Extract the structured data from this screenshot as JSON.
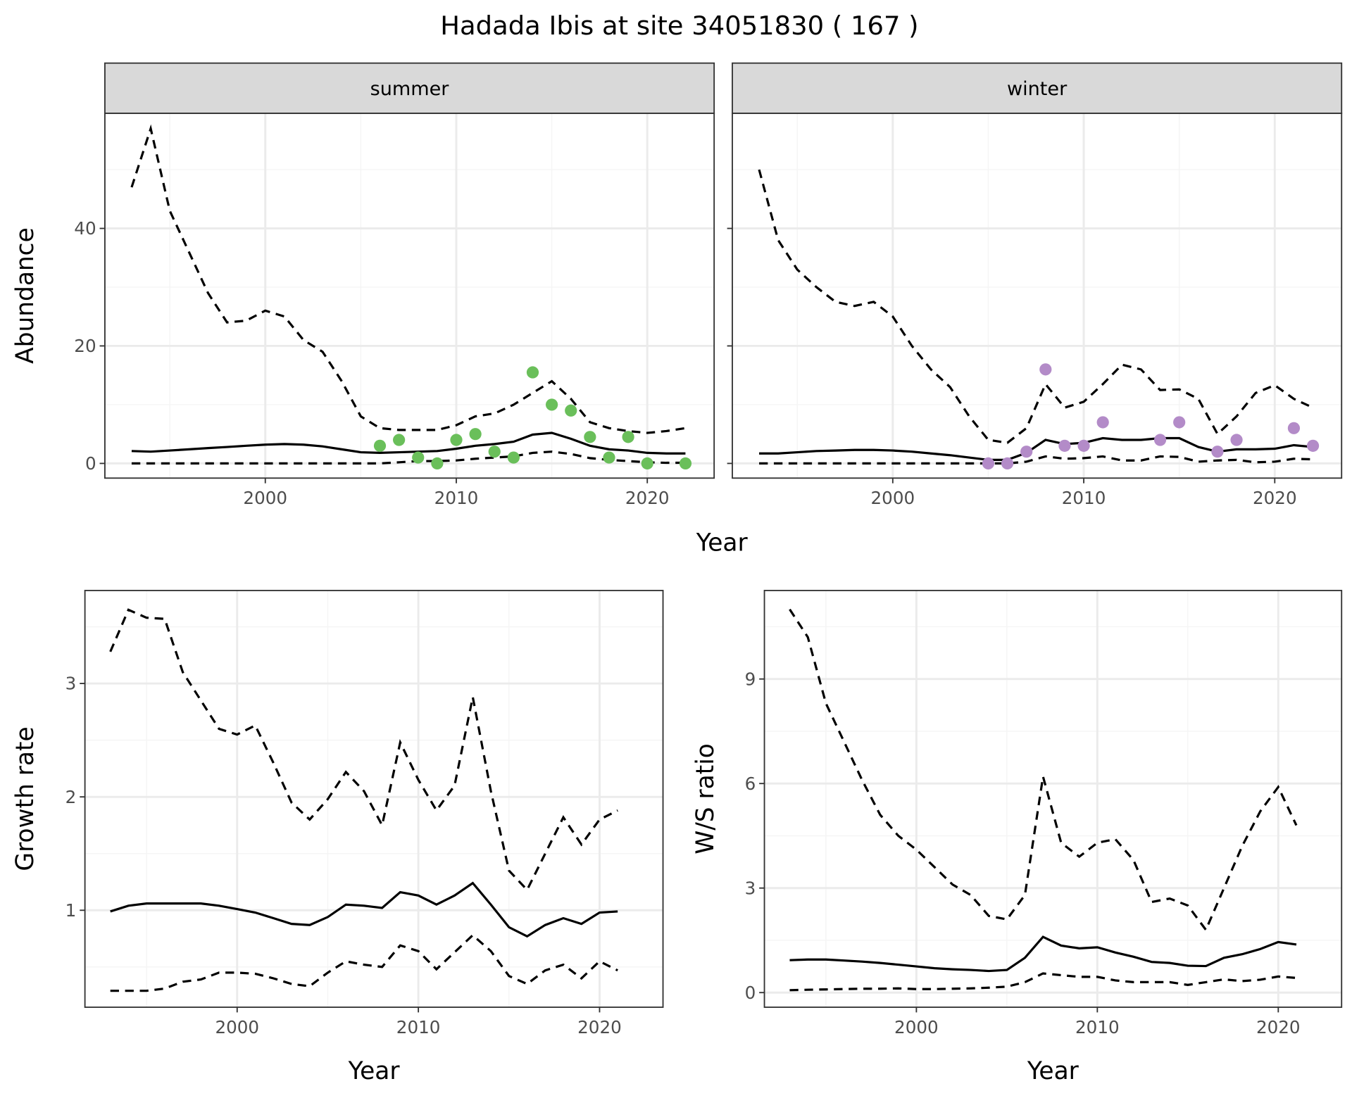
{
  "title": "Hadada Ibis at site 34051830 ( 167 )",
  "colors": {
    "summer_points": "#6abf5a",
    "winter_points": "#b38bc8",
    "lines": "#000000",
    "strip_fill": "#d9d9d9",
    "grid_major": "#ebebeb",
    "grid_minor": "#f5f5f5"
  },
  "chart_data": [
    {
      "type": "line",
      "facet": "summer",
      "xlabel": "Year",
      "ylabel": "Abundance",
      "xlim": [
        1991.6,
        2023.5
      ],
      "ylim": [
        -2.5,
        59.6
      ],
      "xticks": [
        2000,
        2010,
        2020
      ],
      "yticks": [
        0,
        20,
        40
      ],
      "grid": true,
      "x": [
        1993,
        1994,
        1995,
        1996,
        1997,
        1998,
        1999,
        2000,
        2001,
        2002,
        2003,
        2004,
        2005,
        2006,
        2007,
        2008,
        2009,
        2010,
        2011,
        2012,
        2013,
        2014,
        2015,
        2016,
        2017,
        2018,
        2019,
        2020,
        2021,
        2022
      ],
      "upper": [
        47,
        57,
        43,
        36,
        29,
        24,
        24.3,
        26,
        25,
        21,
        19,
        14,
        8,
        6,
        5.7,
        5.7,
        5.7,
        6.5,
        8,
        8.5,
        10,
        12,
        14,
        11,
        7,
        6,
        5.5,
        5.2,
        5.5,
        6
      ],
      "mean": [
        2.1,
        2.0,
        2.2,
        2.4,
        2.6,
        2.8,
        3.0,
        3.2,
        3.3,
        3.2,
        2.9,
        2.4,
        1.9,
        1.8,
        1.9,
        2.0,
        2.1,
        2.5,
        3.0,
        3.3,
        3.7,
        4.9,
        5.2,
        4.2,
        3.0,
        2.4,
        2.2,
        1.8,
        1.7,
        1.7
      ],
      "lower": [
        0,
        0,
        0,
        0,
        0,
        0,
        0,
        0,
        0,
        0,
        0,
        0,
        0,
        0,
        0.2,
        0.4,
        0.4,
        0.5,
        0.8,
        1.0,
        1.2,
        1.8,
        2.0,
        1.6,
        0.9,
        0.6,
        0.4,
        0.2,
        0.1,
        0.1
      ],
      "points": {
        "x": [
          2006,
          2007,
          2008,
          2009,
          2010,
          2011,
          2012,
          2013,
          2014,
          2015,
          2016,
          2017,
          2018,
          2019,
          2020,
          2022
        ],
        "y": [
          3,
          4,
          1,
          0,
          4,
          5,
          2,
          1,
          15.5,
          10,
          9,
          4.5,
          1,
          4.5,
          0,
          0
        ]
      }
    },
    {
      "type": "line",
      "facet": "winter",
      "xlabel": "Year",
      "ylabel": "Abundance",
      "xlim": [
        1991.6,
        2023.5
      ],
      "ylim": [
        -2.5,
        59.6
      ],
      "xticks": [
        2000,
        2010,
        2020
      ],
      "yticks": [
        0,
        20,
        40
      ],
      "grid": true,
      "x": [
        1993,
        1994,
        1995,
        1996,
        1997,
        1998,
        1999,
        2000,
        2001,
        2002,
        2003,
        2004,
        2005,
        2006,
        2007,
        2008,
        2009,
        2010,
        2011,
        2012,
        2013,
        2014,
        2015,
        2016,
        2017,
        2018,
        2019,
        2020,
        2021,
        2022
      ],
      "upper": [
        50,
        38,
        33,
        30,
        27.5,
        26.8,
        27.5,
        25,
        20,
        16,
        13,
        8,
        4,
        3.5,
        6,
        13.5,
        9.5,
        10.5,
        13.5,
        16.8,
        16,
        12.5,
        12.6,
        11,
        5,
        8,
        12,
        13.3,
        11,
        9.5
      ],
      "mean": [
        1.7,
        1.7,
        1.9,
        2.1,
        2.2,
        2.3,
        2.3,
        2.2,
        2.0,
        1.7,
        1.4,
        1.0,
        0.6,
        0.6,
        1.8,
        4.0,
        3.3,
        3.5,
        4.3,
        4.0,
        4.0,
        4.3,
        4.3,
        2.8,
        2.0,
        2.4,
        2.4,
        2.5,
        3.1,
        2.8
      ],
      "lower": [
        0,
        0,
        0,
        0,
        0,
        0,
        0,
        0,
        0,
        0,
        0,
        0,
        0,
        0,
        0.3,
        1.2,
        0.8,
        0.9,
        1.2,
        0.5,
        0.5,
        1.2,
        1.1,
        0.3,
        0.5,
        0.6,
        0.2,
        0.3,
        0.8,
        0.7
      ],
      "points": {
        "x": [
          2005,
          2006,
          2007,
          2008,
          2009,
          2010,
          2011,
          2014,
          2015,
          2017,
          2018,
          2021,
          2022
        ],
        "y": [
          0,
          0,
          2,
          16,
          3,
          3,
          7,
          4,
          7,
          2,
          4,
          6,
          3
        ]
      }
    },
    {
      "type": "line",
      "xlabel": "Year",
      "ylabel": "Growth rate",
      "xlim": [
        1991.6,
        2023.5
      ],
      "ylim": [
        0.145,
        3.82
      ],
      "xticks": [
        2000,
        2010,
        2020
      ],
      "yticks": [
        1,
        2,
        3
      ],
      "grid": true,
      "x": [
        1993,
        1994,
        1995,
        1996,
        1997,
        1998,
        1999,
        2000,
        2001,
        2002,
        2003,
        2004,
        2005,
        2006,
        2007,
        2008,
        2009,
        2010,
        2011,
        2012,
        2013,
        2014,
        2015,
        2016,
        2017,
        2018,
        2019,
        2020,
        2021
      ],
      "upper": [
        3.28,
        3.65,
        3.58,
        3.57,
        3.1,
        2.85,
        2.6,
        2.55,
        2.63,
        2.3,
        1.95,
        1.8,
        1.98,
        2.22,
        2.05,
        1.75,
        2.48,
        2.15,
        1.88,
        2.1,
        2.88,
        2.05,
        1.35,
        1.18,
        1.5,
        1.82,
        1.58,
        1.8,
        1.88
      ],
      "mean": [
        0.99,
        1.04,
        1.06,
        1.06,
        1.06,
        1.06,
        1.04,
        1.01,
        0.98,
        0.93,
        0.88,
        0.87,
        0.94,
        1.05,
        1.04,
        1.02,
        1.16,
        1.13,
        1.05,
        1.13,
        1.24,
        1.05,
        0.85,
        0.77,
        0.87,
        0.93,
        0.88,
        0.98,
        0.99
      ],
      "lower": [
        0.29,
        0.29,
        0.29,
        0.31,
        0.37,
        0.39,
        0.45,
        0.45,
        0.44,
        0.4,
        0.35,
        0.33,
        0.45,
        0.55,
        0.52,
        0.5,
        0.69,
        0.64,
        0.48,
        0.63,
        0.78,
        0.64,
        0.42,
        0.35,
        0.47,
        0.52,
        0.4,
        0.55,
        0.47
      ]
    },
    {
      "type": "line",
      "xlabel": "Year",
      "ylabel": "W/S ratio",
      "xlim": [
        1991.6,
        2023.5
      ],
      "ylim": [
        -0.42,
        11.54
      ],
      "xticks": [
        2000,
        2010,
        2020
      ],
      "yticks": [
        0,
        3,
        6,
        9
      ],
      "grid": true,
      "x": [
        1993,
        1994,
        1995,
        1996,
        1997,
        1998,
        1999,
        2000,
        2001,
        2002,
        2003,
        2004,
        2005,
        2006,
        2007,
        2008,
        2009,
        2010,
        2011,
        2012,
        2013,
        2014,
        2015,
        2016,
        2017,
        2018,
        2019,
        2020,
        2021
      ],
      "upper": [
        11,
        10.2,
        8.3,
        7.2,
        6.1,
        5.1,
        4.5,
        4.1,
        3.6,
        3.1,
        2.8,
        2.2,
        2.1,
        2.8,
        6.2,
        4.3,
        3.9,
        4.3,
        4.4,
        3.8,
        2.6,
        2.7,
        2.5,
        1.8,
        3.0,
        4.2,
        5.2,
        5.9,
        4.8
      ],
      "mean": [
        0.93,
        0.95,
        0.95,
        0.92,
        0.89,
        0.85,
        0.8,
        0.75,
        0.7,
        0.67,
        0.65,
        0.62,
        0.65,
        1.0,
        1.6,
        1.35,
        1.27,
        1.3,
        1.15,
        1.03,
        0.88,
        0.85,
        0.77,
        0.76,
        1.0,
        1.1,
        1.25,
        1.45,
        1.38
      ],
      "lower": [
        0.07,
        0.08,
        0.09,
        0.1,
        0.11,
        0.11,
        0.12,
        0.1,
        0.1,
        0.11,
        0.12,
        0.14,
        0.17,
        0.3,
        0.55,
        0.5,
        0.45,
        0.45,
        0.35,
        0.3,
        0.3,
        0.3,
        0.22,
        0.3,
        0.38,
        0.33,
        0.37,
        0.46,
        0.42
      ]
    }
  ]
}
